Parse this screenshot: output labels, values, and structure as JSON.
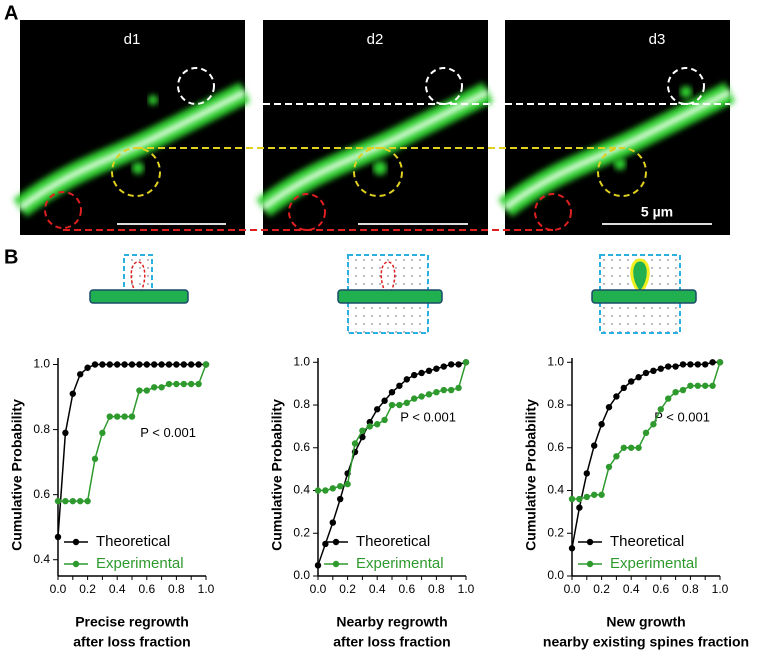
{
  "figure": {
    "panel_a_label": "A",
    "panel_b_label": "B",
    "image_labels": [
      "d1",
      "d2",
      "d3"
    ],
    "scale_bar": "5 µm"
  },
  "chart_data": [
    {
      "type": "line",
      "ylabel": "Cumulative Probability",
      "xlabel": [
        "Precise regrowth",
        "after loss fraction"
      ],
      "annotation": "P < 0.001",
      "x": [
        0,
        0.05,
        0.1,
        0.15,
        0.2,
        0.25,
        0.3,
        0.35,
        0.4,
        0.45,
        0.5,
        0.55,
        0.6,
        0.65,
        0.7,
        0.75,
        0.8,
        0.85,
        0.9,
        0.95,
        1
      ],
      "series": [
        {
          "name": "Theoretical",
          "color": "#000000",
          "values": [
            0.47,
            0.79,
            0.91,
            0.97,
            0.99,
            1,
            1,
            1,
            1,
            1,
            1,
            1,
            1,
            1,
            1,
            1,
            1,
            1,
            1,
            1,
            1
          ]
        },
        {
          "name": "Experimental",
          "color": "#2e9a2e",
          "values": [
            0.58,
            0.58,
            0.58,
            0.58,
            0.58,
            0.71,
            0.79,
            0.84,
            0.84,
            0.84,
            0.84,
            0.92,
            0.92,
            0.93,
            0.93,
            0.94,
            0.94,
            0.94,
            0.94,
            0.94,
            1
          ]
        }
      ],
      "xlim": [
        0,
        1
      ],
      "ylim": [
        0.35,
        1.02
      ],
      "xticks": [
        {
          "value": 0,
          "label": "0.0"
        },
        0.1,
        0.2,
        0.3,
        0.4,
        0.5,
        0.6,
        0.7,
        0.8,
        0.9,
        {
          "value": 1,
          "label": "1.0"
        }
      ],
      "yticks": [
        0.4,
        0.6,
        0.8,
        {
          "value": 1,
          "label": "1.0"
        }
      ]
    },
    {
      "type": "line",
      "ylabel": "Cumulative Probability",
      "xlabel": [
        "Nearby regrowth",
        "after loss fraction"
      ],
      "annotation": "P < 0.001",
      "x": [
        0,
        0.05,
        0.1,
        0.15,
        0.2,
        0.25,
        0.3,
        0.35,
        0.4,
        0.45,
        0.5,
        0.55,
        0.6,
        0.65,
        0.7,
        0.75,
        0.8,
        0.85,
        0.9,
        0.95,
        1
      ],
      "series": [
        {
          "name": "Theoretical",
          "color": "#000000",
          "values": [
            0.05,
            0.15,
            0.25,
            0.36,
            0.48,
            0.58,
            0.65,
            0.72,
            0.78,
            0.82,
            0.86,
            0.89,
            0.92,
            0.94,
            0.95,
            0.96,
            0.97,
            0.98,
            0.99,
            0.99,
            1
          ]
        },
        {
          "name": "Experimental",
          "color": "#2e9a2e",
          "values": [
            0.4,
            0.4,
            0.41,
            0.42,
            0.43,
            0.62,
            0.68,
            0.7,
            0.71,
            0.73,
            0.8,
            0.8,
            0.81,
            0.83,
            0.84,
            0.85,
            0.86,
            0.87,
            0.87,
            0.88,
            1
          ]
        }
      ],
      "xlim": [
        0,
        1
      ],
      "ylim": [
        0,
        1.02
      ],
      "xticks": [
        {
          "value": 0,
          "label": "0.0"
        },
        0.1,
        0.2,
        0.3,
        0.4,
        0.5,
        0.6,
        0.7,
        0.8,
        0.9,
        {
          "value": 1,
          "label": "1.0"
        }
      ],
      "yticks": [
        {
          "value": 0,
          "label": "0.0"
        },
        0.2,
        0.4,
        0.6,
        0.8,
        {
          "value": 1,
          "label": "1.0"
        }
      ]
    },
    {
      "type": "line",
      "ylabel": "Cumulative Probability",
      "xlabel": [
        "New growth",
        "nearby existing spines fraction"
      ],
      "annotation": "P < 0.001",
      "x": [
        0,
        0.05,
        0.1,
        0.15,
        0.2,
        0.25,
        0.3,
        0.35,
        0.4,
        0.45,
        0.5,
        0.55,
        0.6,
        0.65,
        0.7,
        0.75,
        0.8,
        0.85,
        0.9,
        0.95,
        1
      ],
      "series": [
        {
          "name": "Theoretical",
          "color": "#000000",
          "values": [
            0.13,
            0.32,
            0.48,
            0.61,
            0.71,
            0.79,
            0.84,
            0.88,
            0.91,
            0.93,
            0.95,
            0.96,
            0.97,
            0.98,
            0.98,
            0.99,
            0.99,
            0.99,
            0.99,
            1,
            1
          ]
        },
        {
          "name": "Experimental",
          "color": "#2e9a2e",
          "values": [
            0.36,
            0.36,
            0.37,
            0.38,
            0.38,
            0.51,
            0.56,
            0.6,
            0.6,
            0.6,
            0.67,
            0.71,
            0.78,
            0.83,
            0.86,
            0.87,
            0.89,
            0.89,
            0.89,
            0.89,
            1
          ]
        }
      ],
      "xlim": [
        0,
        1
      ],
      "ylim": [
        0,
        1.02
      ],
      "xticks": [
        {
          "value": 0,
          "label": "0.0"
        },
        0.1,
        0.2,
        0.3,
        0.4,
        0.5,
        0.6,
        0.7,
        0.8,
        0.9,
        {
          "value": 1,
          "label": "1.0"
        }
      ],
      "yticks": [
        {
          "value": 0,
          "label": "0.0"
        },
        0.2,
        0.4,
        0.6,
        0.8,
        {
          "value": 1,
          "label": "1.0"
        }
      ]
    }
  ]
}
